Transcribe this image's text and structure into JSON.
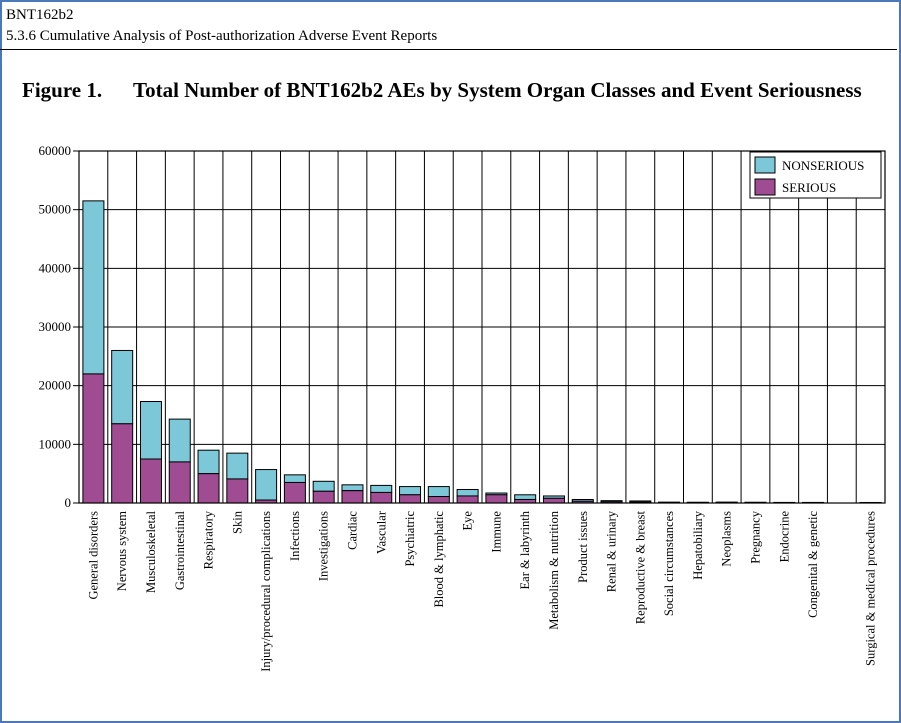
{
  "header": {
    "line1": "BNT162b2",
    "line2": "5.3.6 Cumulative Analysis of Post-authorization Adverse Event Reports"
  },
  "figure": {
    "label": "Figure 1.",
    "title": "Total Number of BNT162b2 AEs by System Organ Classes and Event Seriousness"
  },
  "colors": {
    "nonserious": "#7cc8d8",
    "serious": "#a04c92",
    "grid": "#000000"
  },
  "chart_data": {
    "type": "bar",
    "stacked": true,
    "grid": true,
    "legend_position": "top-right",
    "ylim": [
      0,
      60000
    ],
    "yticks": [
      0,
      10000,
      20000,
      30000,
      40000,
      50000,
      60000
    ],
    "ytick_labels": [
      "0",
      "10000",
      "20000",
      "30000",
      "40000",
      "50000",
      "60000"
    ],
    "categories": [
      "General disorders",
      "Nervous system",
      "Musculoskeletal",
      "Gastrointestinal",
      "Respiratory",
      "Skin",
      "Injury/procedural complications",
      "Infections",
      "Investigations",
      "Cardiac",
      "Vascular",
      "Psychiatric",
      "Blood & lymphatic",
      "Eye",
      "Immune",
      "Ear & labyrinth",
      "Metabolism & nutrition",
      "Product issues",
      "Renal & urinary",
      "Reproductive & breast",
      "Social circumstances",
      "Hepatobiliary",
      "Neoplasms",
      "Pregnancy",
      "Endocrine",
      "Congenital & genetic",
      "",
      "Surgical & medical procedures"
    ],
    "series": [
      {
        "name": "SERIOUS",
        "values": [
          22000,
          13500,
          7500,
          7000,
          5000,
          4100,
          500,
          3500,
          2000,
          2100,
          1800,
          1400,
          1100,
          1200,
          1400,
          600,
          800,
          300,
          200,
          150,
          50,
          80,
          100,
          50,
          40,
          60,
          0,
          30
        ]
      },
      {
        "name": "NONSERIOUS",
        "values": [
          29500,
          12500,
          9800,
          7300,
          4000,
          4400,
          5200,
          1300,
          1700,
          1000,
          1200,
          1400,
          1700,
          1100,
          300,
          800,
          400,
          300,
          200,
          200,
          100,
          50,
          50,
          80,
          60,
          40,
          0,
          60
        ]
      }
    ]
  }
}
